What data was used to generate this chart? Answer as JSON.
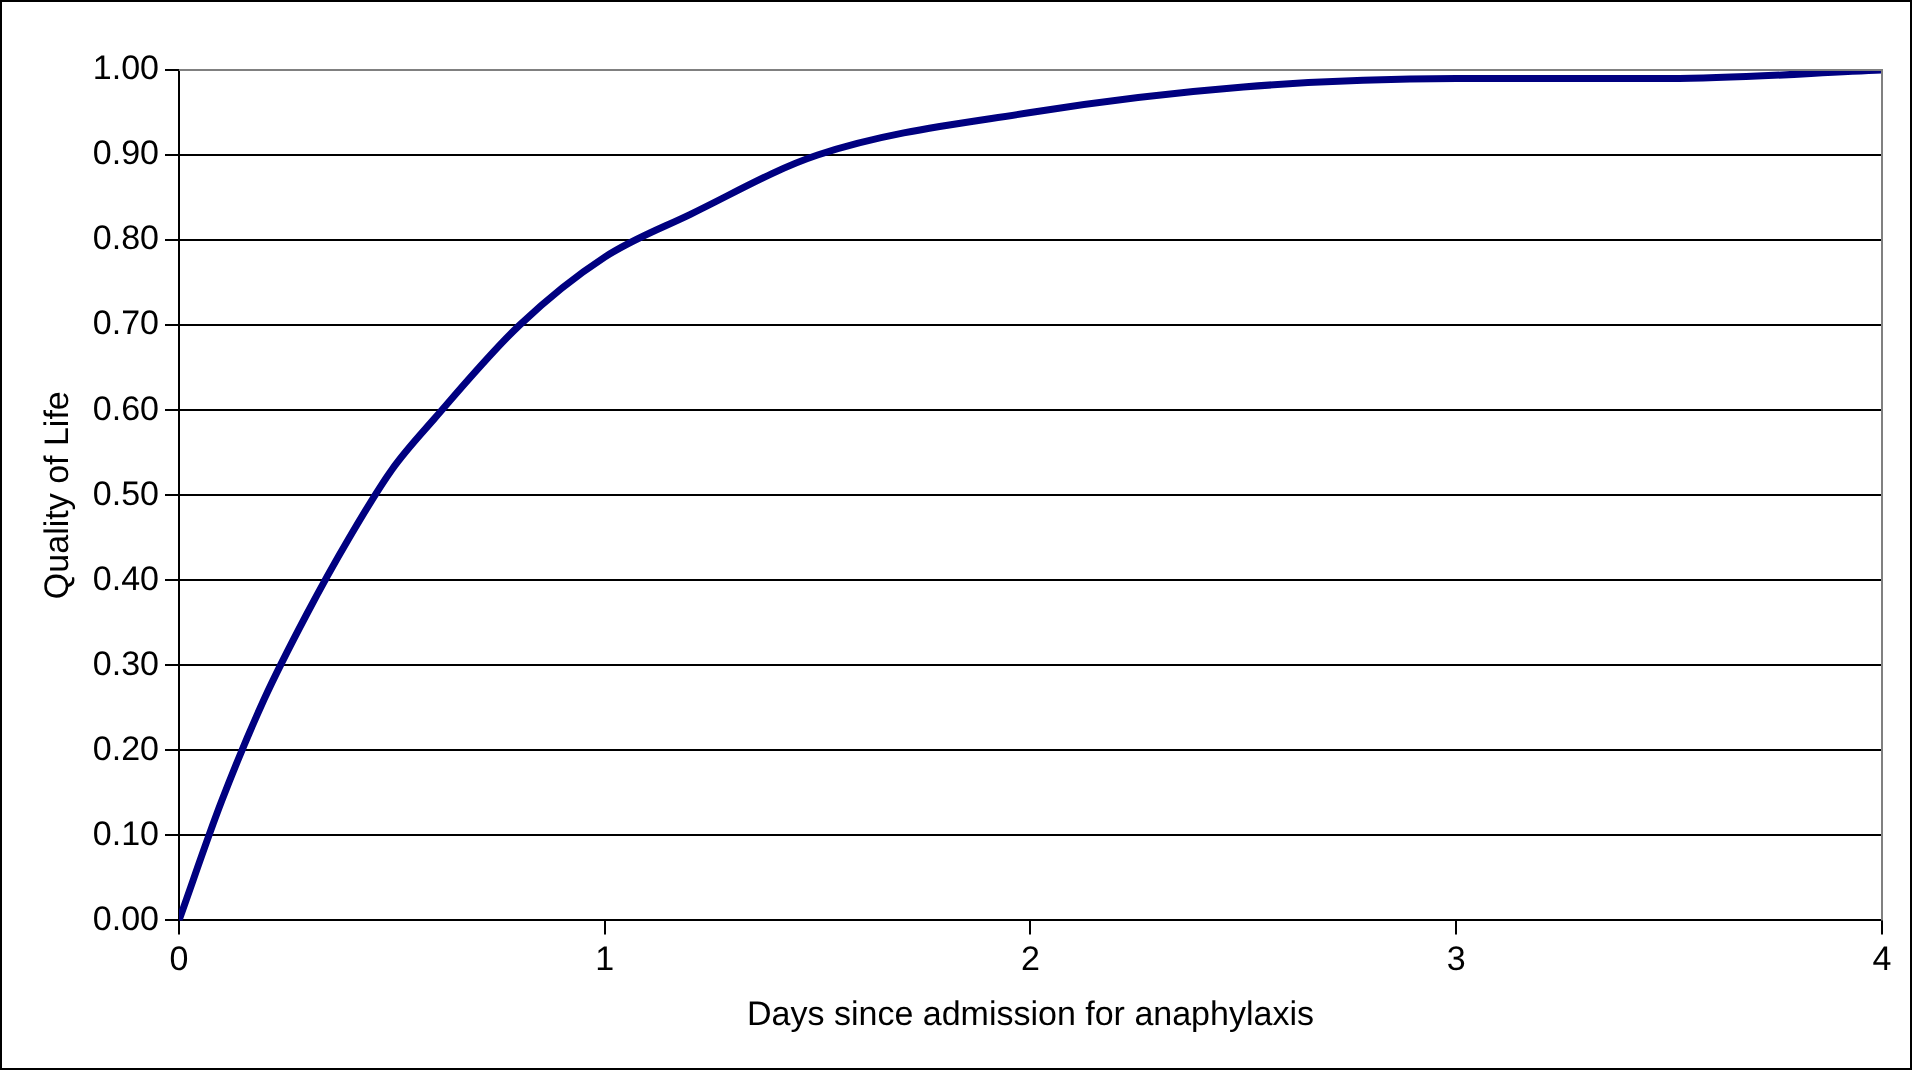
{
  "chart_data": {
    "type": "line",
    "xlabel": "Days since admission for anaphylaxis",
    "ylabel": "Quality of Life",
    "x": [
      0,
      0.1,
      0.2,
      0.3,
      0.4,
      0.5,
      0.6,
      0.8,
      1,
      1.2,
      1.5,
      2,
      2.5,
      3,
      3.5,
      4
    ],
    "series": [
      {
        "color": "#000080",
        "values": [
          0,
          0.14,
          0.26,
          0.36,
          0.45,
          0.53,
          0.59,
          0.7,
          0.78,
          0.83,
          0.9,
          0.95,
          0.98,
          0.99,
          0.99,
          1.0
        ]
      }
    ],
    "xlim": [
      0,
      4
    ],
    "xticks": [
      0,
      1,
      2,
      3,
      4
    ],
    "ylim": [
      0,
      1
    ],
    "yticks": [
      {
        "value": 0,
        "label": "0.00"
      },
      {
        "value": 0.1,
        "label": "0.10"
      },
      {
        "value": 0.2,
        "label": "0.20"
      },
      {
        "value": 0.3,
        "label": "0.30"
      },
      {
        "value": 0.4,
        "label": "0.40"
      },
      {
        "value": 0.5,
        "label": "0.50"
      },
      {
        "value": 0.6,
        "label": "0.60"
      },
      {
        "value": 0.7,
        "label": "0.70"
      },
      {
        "value": 0.8,
        "label": "0.80"
      },
      {
        "value": 0.9,
        "label": "0.90"
      },
      {
        "value": 1,
        "label": "1.00"
      }
    ],
    "grid": "y",
    "legend": false,
    "marker": "none",
    "line_style": "solid"
  }
}
